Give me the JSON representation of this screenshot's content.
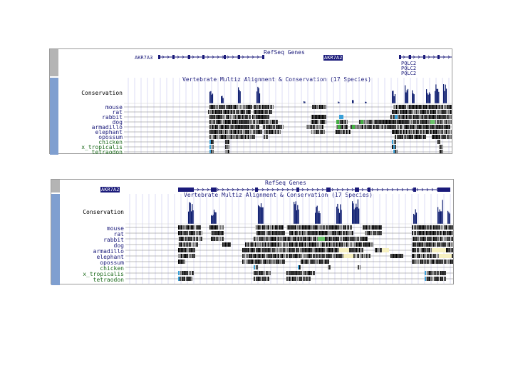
{
  "panels": [
    {
      "refseq_title": "RefSeq Genes",
      "multiz_title": "Vertebrate Multiz Alignment & Conservation (17 Species)",
      "genes": [
        {
          "label": "AKR7A3",
          "highlighted": false
        },
        {
          "label": "AKR7A2",
          "highlighted": true
        },
        {
          "label": "PQLC2",
          "highlighted": false
        },
        {
          "label": "PQLC2",
          "highlighted": false
        },
        {
          "label": "PQLC2",
          "highlighted": false
        }
      ],
      "conservation_label": "Conservation",
      "species": [
        "mouse",
        "rat",
        "rabbit",
        "dog",
        "armadillo",
        "elephant",
        "opossum",
        "chicken",
        "x_tropicalis",
        "tetraodon"
      ]
    },
    {
      "refseq_title": "RefSeq Genes",
      "multiz_title": "Vertebrate Multiz Alignment & Conservation (17 Species)",
      "genes": [
        {
          "label": "AKR7A2",
          "highlighted": true
        }
      ],
      "conservation_label": "Conservation",
      "species": [
        "mouse",
        "rat",
        "rabbit",
        "dog",
        "armadillo",
        "elephant",
        "opossum",
        "chicken",
        "x_tropicalis",
        "tetraodon"
      ]
    }
  ],
  "colors": {
    "navy": "#1a1a7a",
    "conservation": "#0a1a6e",
    "species_black": "#000000",
    "species_green": "#1d6b1d",
    "grid": "#c8c8ee",
    "side_blue": "#7f9fd0",
    "side_grey": "#b4b4b4"
  }
}
